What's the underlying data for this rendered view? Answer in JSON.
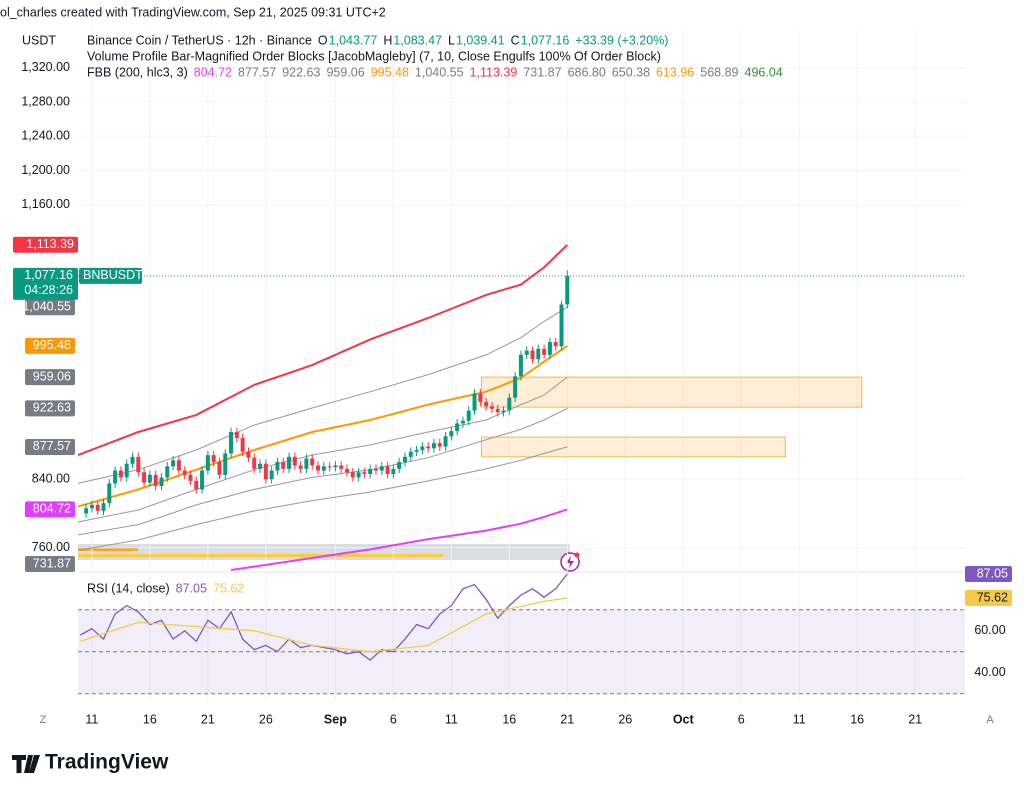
{
  "header": {
    "credit": "ol_charles created with TradingView.com, Sep 21, 2025 09:31 UTC+2"
  },
  "chart_data": {
    "type": "candlestick",
    "currency": "USDT",
    "title": "Binance Coin / TetherUS · 12h · Binance",
    "ohlc": [
      {
        "key": "O",
        "value": 1043.77,
        "label": "1,043.77"
      },
      {
        "key": "H",
        "value": 1083.47,
        "label": "1,083.47"
      },
      {
        "key": "L",
        "value": 1039.41,
        "label": "1,039.41"
      },
      {
        "key": "C",
        "value": 1077.16,
        "label": "1,077.16"
      }
    ],
    "change": "+33.39 (+3.20%)",
    "indicator": "Volume Profile Bar-Magnified Order Blocks [JacobMagleby] (7, 10, Close Engulfs 100% Of Order Block)",
    "fbb": {
      "label": "FBB (200, hlc3, 3)",
      "values": [
        {
          "value": 804.72,
          "label": "804.72",
          "color": "#e040fb"
        },
        {
          "value": 877.57,
          "label": "877.57",
          "color": "#787b86"
        },
        {
          "value": 922.63,
          "label": "922.63",
          "color": "#787b86"
        },
        {
          "value": 959.06,
          "label": "959.06",
          "color": "#787b86"
        },
        {
          "value": 995.48,
          "label": "995.48",
          "color": "#ff9800"
        },
        {
          "value": 1040.55,
          "label": "1,040.55",
          "color": "#787b86"
        },
        {
          "value": 1113.39,
          "label": "1,113.39",
          "color": "#f23645"
        },
        {
          "value": 731.87,
          "label": "731.87",
          "color": "#787b86"
        },
        {
          "value": 686.8,
          "label": "686.80",
          "color": "#787b86"
        },
        {
          "value": 650.38,
          "label": "650.38",
          "color": "#787b86"
        },
        {
          "value": 613.96,
          "label": "613.96",
          "color": "#ff9800"
        },
        {
          "value": 568.89,
          "label": "568.89",
          "color": "#787b86"
        },
        {
          "value": 496.04,
          "label": "496.04",
          "color": "#388e3c"
        }
      ]
    },
    "symbol": "BNBUSDT",
    "countdown": "04:28:26",
    "up_color": "#089981",
    "down_color": "#f23645",
    "x": [
      -0.5,
      0,
      0.5,
      1,
      1.5,
      2,
      2.5,
      3,
      3.5,
      4,
      4.5,
      5,
      5.5,
      6,
      6.5,
      7,
      7.5,
      8,
      8.5,
      9,
      9.5,
      10,
      10.5,
      11,
      11.5,
      12,
      12.5,
      13,
      13.5,
      14,
      14.5,
      15,
      15.5,
      16,
      16.5,
      17,
      17.5,
      18,
      18.5,
      19,
      19.5,
      20,
      20.5,
      21,
      21.5,
      22,
      22.5,
      23,
      23.5,
      24,
      24.5,
      25,
      25.5,
      26,
      26.5,
      27,
      27.5,
      28,
      28.5,
      29,
      29.5,
      30,
      30.5,
      31,
      31.5,
      32,
      32.5,
      33,
      33.5,
      34,
      34.5,
      35,
      35.5,
      36,
      36.5,
      37,
      37.5,
      38,
      38.5,
      39,
      39.5,
      40,
      40.5,
      41
    ],
    "open": [
      800,
      806,
      810,
      803,
      812,
      835,
      850,
      842,
      858,
      866,
      848,
      836,
      845,
      832,
      842,
      855,
      862,
      850,
      845,
      838,
      828,
      850,
      868,
      860,
      845,
      870,
      895,
      888,
      872,
      865,
      852,
      858,
      840,
      850,
      860,
      852,
      866,
      856,
      852,
      864,
      856,
      850,
      855,
      854,
      856,
      852,
      848,
      842,
      848,
      846,
      852,
      850,
      855,
      846,
      852,
      860,
      866,
      872,
      874,
      878,
      876,
      882,
      878,
      890,
      896,
      905,
      908,
      920,
      940,
      930,
      925,
      922,
      918,
      920,
      935,
      960,
      985,
      990,
      980,
      992,
      985,
      1000,
      995,
      1043.77
    ],
    "high": [
      811,
      815,
      815,
      817,
      840,
      855,
      855,
      863,
      871,
      871,
      853,
      850,
      850,
      847,
      860,
      867,
      867,
      855,
      850,
      843,
      855,
      873,
      873,
      865,
      875,
      900,
      900,
      893,
      877,
      870,
      863,
      863,
      855,
      865,
      865,
      871,
      871,
      861,
      869,
      869,
      861,
      860,
      860,
      861,
      861,
      857,
      853,
      853,
      853,
      857,
      857,
      860,
      860,
      857,
      865,
      871,
      877,
      879,
      883,
      883,
      887,
      887,
      895,
      901,
      910,
      913,
      925,
      945,
      945,
      935,
      930,
      927,
      925,
      940,
      965,
      990,
      995,
      995,
      997,
      997,
      1005,
      1005,
      1048,
      1083.47
    ],
    "low": [
      795,
      801,
      798,
      798,
      807,
      830,
      837,
      837,
      853,
      843,
      831,
      831,
      827,
      827,
      837,
      850,
      845,
      840,
      833,
      823,
      823,
      845,
      855,
      840,
      840,
      865,
      883,
      867,
      860,
      847,
      847,
      835,
      835,
      845,
      847,
      847,
      851,
      847,
      847,
      851,
      845,
      845,
      849,
      849,
      847,
      843,
      837,
      837,
      841,
      841,
      845,
      845,
      841,
      841,
      847,
      855,
      861,
      867,
      869,
      871,
      871,
      873,
      873,
      885,
      891,
      900,
      903,
      915,
      925,
      920,
      917,
      913,
      913,
      915,
      930,
      955,
      980,
      975,
      975,
      980,
      980,
      990,
      990,
      1039.41
    ],
    "close": [
      806,
      810,
      803,
      812,
      835,
      850,
      842,
      858,
      866,
      848,
      836,
      845,
      832,
      842,
      855,
      862,
      850,
      845,
      838,
      828,
      850,
      868,
      860,
      845,
      870,
      895,
      888,
      872,
      865,
      852,
      858,
      840,
      850,
      860,
      852,
      866,
      856,
      852,
      864,
      856,
      850,
      855,
      854,
      856,
      852,
      848,
      842,
      848,
      846,
      852,
      850,
      855,
      846,
      852,
      860,
      866,
      872,
      874,
      878,
      876,
      882,
      878,
      890,
      896,
      905,
      908,
      920,
      940,
      930,
      925,
      922,
      918,
      920,
      935,
      960,
      985,
      990,
      980,
      992,
      985,
      1000,
      995,
      1043.77,
      1077.16
    ],
    "bands": [
      {
        "color": "#f23645",
        "x": [
          -1.2,
          4,
          9,
          14,
          19,
          24,
          29,
          34,
          37,
          39,
          41
        ],
        "values": [
          868,
          895,
          915,
          950,
          973,
          1003,
          1028,
          1055,
          1067,
          1087,
          1113.39
        ]
      },
      {
        "color": "#9598a1",
        "x": [
          -1.2,
          4,
          9,
          14,
          19,
          24,
          29,
          34,
          37,
          39,
          41
        ],
        "values": [
          835,
          851,
          874,
          903,
          923,
          942,
          962,
          985,
          1005,
          1024,
          1040.55
        ]
      },
      {
        "color": "#ff9800",
        "x": [
          -1.2,
          4,
          9,
          14,
          19,
          24,
          29,
          34,
          37,
          39,
          41
        ],
        "values": [
          808,
          828,
          851,
          874,
          895,
          909,
          927,
          942,
          958,
          977,
          995.48
        ]
      },
      {
        "color": "#9598a1",
        "x": [
          -1.2,
          4,
          9,
          14,
          19,
          24,
          29,
          34,
          37,
          39,
          41
        ],
        "values": [
          790,
          804,
          828,
          851,
          868,
          880,
          895,
          909,
          927,
          938,
          959.06
        ]
      },
      {
        "color": "#9598a1",
        "x": [
          -1.2,
          4,
          9,
          14,
          19,
          24,
          29,
          34,
          37,
          39,
          41
        ],
        "values": [
          775,
          787,
          810,
          828,
          842,
          851,
          865,
          886,
          898,
          909,
          922.63
        ]
      },
      {
        "color": "#9598a1",
        "x": [
          -1.2,
          4,
          9,
          14,
          19,
          24,
          29,
          34,
          37,
          39,
          41
        ],
        "values": [
          757,
          769,
          787,
          803,
          815,
          825,
          838,
          852,
          862,
          870,
          877.57
        ]
      },
      {
        "color": "#e040fb",
        "x": [
          12,
          19,
          24,
          29,
          34,
          37,
          39,
          41
        ],
        "values": [
          734,
          748,
          758,
          770,
          780,
          788,
          796,
          804.72
        ]
      }
    ],
    "zones": [
      {
        "x": [
          33.6,
          66.4
        ],
        "y": [
          924,
          959
        ]
      },
      {
        "x": [
          33.6,
          59.8
        ],
        "y": [
          866,
          889
        ]
      }
    ],
    "xlim": [
      -1.2,
      75.3
    ],
    "xticks": [
      {
        "value": 0,
        "label": "11"
      },
      {
        "value": 5,
        "label": "16"
      },
      {
        "value": 10,
        "label": "21"
      },
      {
        "value": 15,
        "label": "26"
      },
      {
        "value": 21,
        "label": "Sep"
      },
      {
        "value": 26,
        "label": "6"
      },
      {
        "value": 31,
        "label": "11"
      },
      {
        "value": 36,
        "label": "16"
      },
      {
        "value": 41,
        "label": "21"
      },
      {
        "value": 46,
        "label": "26"
      },
      {
        "value": 51,
        "label": "Oct"
      },
      {
        "value": 56,
        "label": "6"
      },
      {
        "value": 61,
        "label": "11"
      },
      {
        "value": 66,
        "label": "16"
      },
      {
        "value": 71,
        "label": "21"
      }
    ],
    "ylim": [
      734,
      1364
    ],
    "yticks": [
      {
        "value": 760,
        "label": "760.00"
      },
      {
        "value": 840,
        "label": "840.00"
      },
      {
        "value": 1160,
        "label": "1,160.00"
      },
      {
        "value": 1200,
        "label": "1,200.00"
      },
      {
        "value": 1240,
        "label": "1,240.00"
      },
      {
        "value": 1280,
        "label": "1,280.00"
      },
      {
        "value": 1320,
        "label": "1,320.00"
      }
    ],
    "grid": true,
    "rsi": {
      "label": "RSI (14, close)",
      "ylim": [
        27,
        88
      ],
      "yticks": [
        {
          "value": 60,
          "label": "60.00"
        },
        {
          "value": 40,
          "label": "40.00"
        }
      ],
      "levels": [
        70,
        50,
        30
      ],
      "series": [
        {
          "color": "#7e57c2",
          "last": 87.05,
          "x": [
            -1,
            0,
            1,
            2,
            3,
            4,
            5,
            6,
            7,
            8,
            9,
            10,
            11,
            12,
            13,
            14,
            15,
            16,
            17,
            18,
            19,
            20,
            21,
            22,
            23,
            24,
            25,
            26,
            27,
            28,
            29,
            30,
            31,
            32,
            33,
            34,
            35,
            36,
            37,
            38,
            39,
            40,
            41
          ],
          "values": [
            58,
            61,
            56,
            68,
            72,
            69,
            63,
            65,
            56,
            60,
            55,
            65,
            61,
            69,
            56,
            51,
            53,
            50,
            56,
            52,
            53,
            52,
            51,
            49,
            50,
            46,
            51,
            50,
            56,
            63,
            61,
            68,
            72,
            80,
            82,
            75,
            66,
            72,
            77,
            80,
            76,
            80,
            87.05
          ]
        },
        {
          "color": "#f7c948",
          "last": 75.62,
          "x": [
            -1,
            4,
            9,
            14,
            19,
            24,
            29,
            34,
            39,
            41
          ],
          "values": [
            55,
            64,
            62,
            60,
            53,
            50,
            53,
            68,
            74,
            75.62
          ]
        }
      ]
    }
  },
  "footer": {
    "logo": "TradingView"
  },
  "scale_buttons": [
    "Z",
    "A"
  ]
}
